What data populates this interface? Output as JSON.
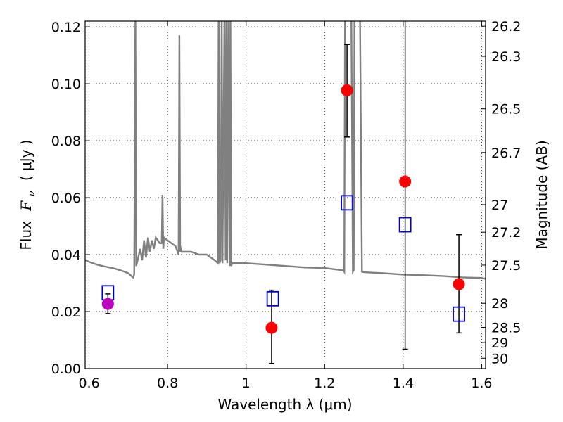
{
  "chart_data": {
    "type": "scatter",
    "xlabel": "Wavelength  λ (μm)",
    "ylabel_text": "Flux",
    "ylabel_math": "F",
    "ylabel_sub": "ν",
    "ylabel_unit": "( μJy )",
    "y2label": "Magnitude (AB)",
    "xlim": [
      0.59,
      1.61
    ],
    "ylim": [
      0.0,
      0.122
    ],
    "x_ticks": [
      0.6,
      0.8,
      1.0,
      1.2,
      1.4,
      1.6
    ],
    "x_tick_labels": [
      "0.6",
      "0.8",
      "1",
      "1.2",
      "1.4",
      "1.6"
    ],
    "y_ticks": [
      0.0,
      0.02,
      0.04,
      0.06,
      0.08,
      0.1,
      0.12
    ],
    "y_tick_labels": [
      "0.00",
      "0.02",
      "0.04",
      "0.06",
      "0.08",
      "0.10",
      "0.12"
    ],
    "mag_ticks": [
      "26.2",
      "26.3",
      "26.5",
      "26.7",
      "27",
      "27.2",
      "27.5",
      "28",
      "28.5",
      "29",
      "30"
    ],
    "grid": true,
    "colors": {
      "model": "#808080",
      "observed": "#ff0000",
      "optical": "#bf00bf",
      "synthetic": "#0000cc",
      "errorbar": "#000000"
    },
    "series": [
      {
        "kind": "line",
        "x": [
          0.59,
          0.6,
          0.62,
          0.64,
          0.66,
          0.68,
          0.7,
          0.712,
          0.715,
          0.718,
          0.72,
          0.722,
          0.73,
          0.735,
          0.74,
          0.745,
          0.75,
          0.755,
          0.76,
          0.765,
          0.77,
          0.775,
          0.78,
          0.785,
          0.787,
          0.789,
          0.791,
          0.8,
          0.82,
          0.828,
          0.83,
          0.832,
          0.834,
          0.836,
          0.84,
          0.86,
          0.88,
          0.9,
          0.92,
          0.928,
          0.93,
          0.932,
          0.935,
          0.938,
          0.94,
          0.945,
          0.948,
          0.95,
          0.952,
          0.955,
          0.958,
          0.96,
          0.962,
          0.965,
          0.968,
          0.97,
          1.0,
          1.05,
          1.1,
          1.15,
          1.2,
          1.245,
          1.248,
          1.25,
          1.252,
          1.255,
          1.262,
          1.268,
          1.272,
          1.274,
          1.276,
          1.278,
          1.28,
          1.285,
          1.29,
          1.295,
          1.3,
          1.35,
          1.4,
          1.45,
          1.5,
          1.55,
          1.6,
          1.61
        ],
        "y": [
          0.0381,
          0.0375,
          0.0365,
          0.0358,
          0.0353,
          0.0345,
          0.0335,
          0.032,
          0.033,
          0.125,
          0.036,
          0.037,
          0.042,
          0.038,
          0.045,
          0.039,
          0.046,
          0.041,
          0.045,
          0.042,
          0.046,
          0.045,
          0.044,
          0.044,
          0.061,
          0.042,
          0.046,
          0.045,
          0.043,
          0.04,
          0.117,
          0.041,
          0.042,
          0.041,
          0.041,
          0.041,
          0.04,
          0.04,
          0.038,
          0.037,
          0.125,
          0.037,
          0.038,
          0.125,
          0.037,
          0.125,
          0.038,
          0.125,
          0.037,
          0.125,
          0.036,
          0.125,
          0.036,
          0.037,
          0.037,
          0.037,
          0.037,
          0.0365,
          0.036,
          0.0355,
          0.0353,
          0.0345,
          0.0345,
          0.034,
          0.125,
          0.125,
          0.125,
          0.125,
          0.034,
          0.0345,
          0.125,
          0.125,
          0.125,
          0.125,
          0.125,
          0.034,
          0.0338,
          0.0335,
          0.033,
          0.0328,
          0.0325,
          0.032,
          0.0318,
          0.0315
        ]
      },
      {
        "kind": "errorbar",
        "color_key": "observed",
        "points": [
          {
            "x": 1.065,
            "y": 0.0143,
            "lo": 0.0018,
            "hi": 0.0275
          },
          {
            "x": 1.257,
            "y": 0.0977,
            "lo": 0.0813,
            "hi": 0.1138
          },
          {
            "x": 1.405,
            "y": 0.0657,
            "lo": 0.0068,
            "hi": 0.126
          },
          {
            "x": 1.542,
            "y": 0.0296,
            "lo": 0.0125,
            "hi": 0.047
          }
        ]
      },
      {
        "kind": "errorbar",
        "color_key": "optical",
        "points": [
          {
            "x": 0.648,
            "y": 0.0227,
            "lo": 0.0193,
            "hi": 0.0262
          }
        ]
      },
      {
        "kind": "squares",
        "color_key": "synthetic",
        "points": [
          {
            "x": 0.648,
            "y": 0.0266
          },
          {
            "x": 1.068,
            "y": 0.0245
          },
          {
            "x": 1.257,
            "y": 0.0582
          },
          {
            "x": 1.405,
            "y": 0.0505
          },
          {
            "x": 1.542,
            "y": 0.0191
          }
        ]
      }
    ]
  }
}
